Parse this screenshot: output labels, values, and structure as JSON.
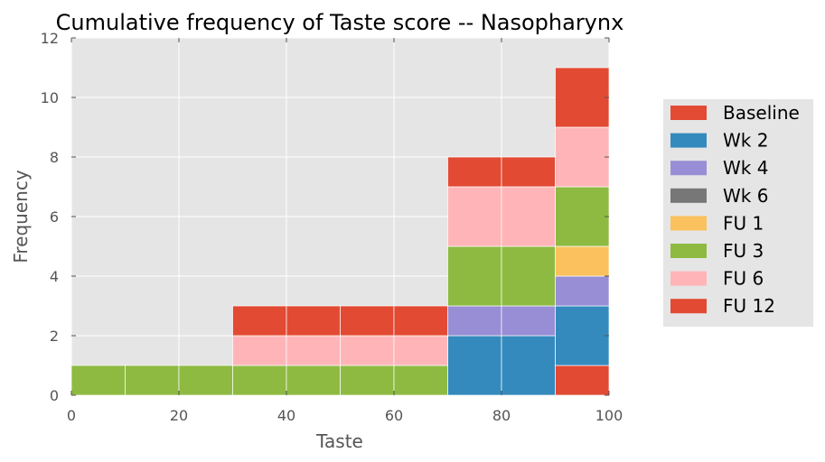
{
  "chart_data": {
    "type": "bar",
    "stacked": true,
    "title": "Cumulative frequency of Taste score -- Nasopharynx",
    "xlabel": "Taste",
    "ylabel": "Frequency",
    "xlim": [
      0,
      100
    ],
    "ylim": [
      0,
      12
    ],
    "x_ticks": [
      "0",
      "20",
      "40",
      "60",
      "80",
      "100"
    ],
    "y_ticks": [
      "0",
      "2",
      "4",
      "6",
      "8",
      "10",
      "12"
    ],
    "grid": true,
    "legend_position": "right",
    "bins": [
      [
        0,
        10
      ],
      [
        10,
        20
      ],
      [
        20,
        30
      ],
      [
        30,
        40
      ],
      [
        40,
        50
      ],
      [
        50,
        60
      ],
      [
        60,
        70
      ],
      [
        70,
        80
      ],
      [
        80,
        90
      ],
      [
        90,
        100
      ]
    ],
    "series": [
      {
        "name": "Baseline",
        "color": "#E24A33",
        "values": [
          0,
          0,
          0,
          0,
          0,
          0,
          0,
          0,
          0,
          1
        ]
      },
      {
        "name": "Wk 2",
        "color": "#348ABD",
        "values": [
          0,
          0,
          0,
          0,
          0,
          0,
          0,
          2,
          2,
          2
        ]
      },
      {
        "name": "Wk 4",
        "color": "#988ED5",
        "values": [
          0,
          0,
          0,
          0,
          0,
          0,
          0,
          1,
          1,
          1
        ]
      },
      {
        "name": "Wk 6",
        "color": "#777777",
        "values": [
          0,
          0,
          0,
          0,
          0,
          0,
          0,
          0,
          0,
          0
        ]
      },
      {
        "name": "FU 1",
        "color": "#FBC15E",
        "values": [
          0,
          0,
          0,
          0,
          0,
          0,
          0,
          0,
          0,
          1
        ]
      },
      {
        "name": "FU 3",
        "color": "#8EBA42",
        "values": [
          1,
          1,
          1,
          1,
          1,
          1,
          1,
          2,
          2,
          2
        ]
      },
      {
        "name": "FU 6",
        "color": "#FFB5B8",
        "values": [
          0,
          0,
          0,
          1,
          1,
          1,
          1,
          2,
          2,
          2
        ]
      },
      {
        "name": "FU 12",
        "color": "#E24A33",
        "values": [
          0,
          0,
          0,
          1,
          1,
          1,
          1,
          1,
          1,
          2
        ]
      }
    ]
  }
}
